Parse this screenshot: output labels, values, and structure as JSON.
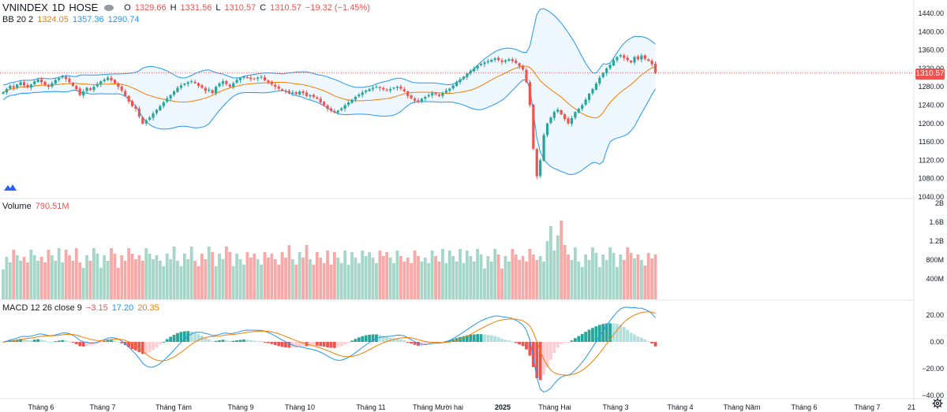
{
  "header": {
    "symbol": "VNINDEX",
    "interval": "1D",
    "exchange": "HOSE",
    "open_label": "O",
    "open": "1329.66",
    "high_label": "H",
    "high": "1331.56",
    "low_label": "L",
    "low": "1310.57",
    "close_label": "C",
    "close": "1310.57",
    "change": "−19.32 (−1.45%)"
  },
  "bb_legend": {
    "name": "BB 20 2",
    "basis": "1324.05",
    "upper": "1357.36",
    "lower": "1290.74"
  },
  "volume_legend": {
    "name": "Volume",
    "value": "790.51M"
  },
  "macd_legend": {
    "name": "MACD 12 26 close 9",
    "hist": "−3.15",
    "macd": "17.20",
    "signal": "20.35"
  },
  "price_tag": "1310.57",
  "colors": {
    "up": "#26a69a",
    "down": "#ef5350",
    "vol_up": "#a5d6c8",
    "vol_down": "#f7a9a7",
    "bb_band": "#2196f3",
    "bb_basis": "#f57c00",
    "macd": "#2196f3",
    "signal": "#f57c00"
  },
  "chart_data": {
    "type": "candlestick",
    "axes": {
      "price": {
        "ticks": [
          "1440.00",
          "1400.00",
          "1360.00",
          "1320.00",
          "1280.00",
          "1240.00",
          "1200.00",
          "1160.00",
          "1120.00",
          "1080.00",
          "1040.00"
        ],
        "range": [
          1040,
          1440
        ]
      },
      "volume": {
        "ticks": [
          "2B",
          "1.6B",
          "1.2B",
          "800M",
          "400M"
        ]
      },
      "macd": {
        "ticks": [
          "20.00",
          "0.00",
          "−20.00",
          "−40.00"
        ],
        "range": [
          -40,
          20
        ]
      },
      "time": {
        "ticks": [
          "Tháng 6",
          "Tháng 7",
          "Tháng Tám",
          "Tháng 9",
          "Tháng 10",
          "Tháng 11",
          "Tháng Mười hai",
          "2025",
          "Tháng Hai",
          "Tháng 3",
          "Tháng 4",
          "Tháng Năm",
          "Tháng 6",
          "Tháng 7",
          "21"
        ]
      }
    },
    "closes": [
      1268,
      1275,
      1282,
      1278,
      1285,
      1290,
      1283,
      1279,
      1285,
      1292,
      1296,
      1290,
      1284,
      1280,
      1288,
      1295,
      1299,
      1303,
      1297,
      1290,
      1282,
      1275,
      1262,
      1270,
      1278,
      1273,
      1280,
      1286,
      1292,
      1296,
      1300,
      1294,
      1288,
      1280,
      1272,
      1260,
      1248,
      1238,
      1232,
      1215,
      1200,
      1207,
      1213,
      1222,
      1230,
      1238,
      1246,
      1255,
      1262,
      1270,
      1278,
      1283,
      1287,
      1290,
      1292,
      1288,
      1282,
      1278,
      1271,
      1274,
      1266,
      1280,
      1287,
      1292,
      1286,
      1280,
      1288,
      1295,
      1299,
      1302,
      1300,
      1297,
      1298,
      1300,
      1302,
      1294,
      1290,
      1285,
      1280,
      1276,
      1272,
      1270,
      1266,
      1268,
      1264,
      1270,
      1266,
      1260,
      1262,
      1258,
      1254,
      1246,
      1240,
      1232,
      1228,
      1224,
      1228,
      1233,
      1240,
      1246,
      1252,
      1258,
      1263,
      1268,
      1272,
      1275,
      1278,
      1280,
      1277,
      1274,
      1272,
      1275,
      1278,
      1280,
      1276,
      1270,
      1260,
      1255,
      1250,
      1248,
      1254,
      1258,
      1262,
      1266,
      1264,
      1260,
      1266,
      1272,
      1276,
      1283,
      1290,
      1296,
      1302,
      1309,
      1315,
      1320,
      1326,
      1330,
      1333,
      1336,
      1339,
      1342,
      1338,
      1334,
      1338,
      1340,
      1336,
      1332,
      1325,
      1318,
      1290,
      1240,
      1145,
      1085,
      1120,
      1175,
      1200,
      1213,
      1225,
      1230,
      1220,
      1210,
      1200,
      1212,
      1225,
      1232,
      1240,
      1252,
      1265,
      1275,
      1287,
      1300,
      1310,
      1320,
      1328,
      1338,
      1345,
      1349,
      1343,
      1338,
      1333,
      1345,
      1340,
      1348,
      1341,
      1337,
      1329,
      1311
    ],
    "bb": {
      "upper_last": 1357.36,
      "basis_last": 1324.05,
      "lower_last": 1290.74
    },
    "volume_last": "790.51M",
    "macd": {
      "macd_last": 17.2,
      "signal_last": 20.35,
      "hist_last": -3.15
    }
  }
}
